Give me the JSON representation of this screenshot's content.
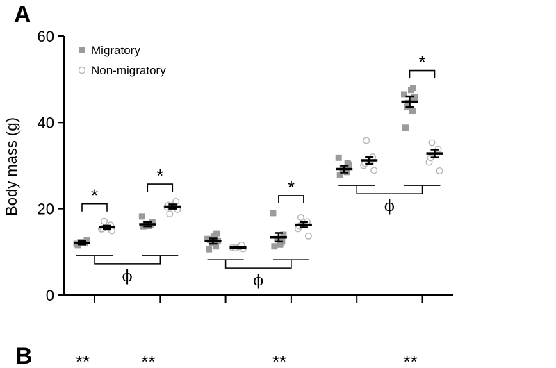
{
  "chart_data": {
    "type": "scatter",
    "panel_label": "A",
    "second_panel_label": "B",
    "ylabel": "Body mass (g)",
    "ylim": [
      0,
      60
    ],
    "yticks": [
      0,
      20,
      40,
      60
    ],
    "x_ticks_count": 6,
    "legend_placement": "top-left",
    "colors": {
      "migratory": "#9b9b9b",
      "non_migratory": "#b7b7b7",
      "mean": "#000000"
    },
    "series": [
      {
        "name": "Migratory",
        "marker": "filled-square"
      },
      {
        "name": "Non-migratory",
        "marker": "open-circle"
      }
    ],
    "groups": [
      {
        "tick": 1,
        "migratory": {
          "mean": 12.1,
          "sem": 0.4,
          "points": [
            11.6,
            12.0,
            12.3,
            12.7,
            11.9,
            12.2
          ]
        },
        "non_migratory": {
          "mean": 15.7,
          "sem": 0.4,
          "points": [
            14.9,
            15.3,
            15.8,
            16.2,
            17.1,
            15.5
          ]
        },
        "significance": "*"
      },
      {
        "tick": 2,
        "migratory": {
          "mean": 16.4,
          "sem": 0.5,
          "points": [
            15.9,
            16.2,
            16.5,
            16.8,
            18.2,
            16.0
          ]
        },
        "non_migratory": {
          "mean": 20.5,
          "sem": 0.5,
          "points": [
            19.8,
            20.4,
            21.0,
            21.7,
            18.8,
            20.8
          ]
        },
        "significance": "*"
      },
      {
        "tick": 3,
        "migratory": {
          "mean": 12.5,
          "sem": 0.6,
          "points": [
            10.6,
            11.3,
            12.0,
            12.5,
            13.0,
            13.6,
            14.3,
            12.8
          ]
        },
        "non_migratory": {
          "mean": 11.0,
          "sem": 0.2,
          "points": [
            10.7,
            11.0,
            11.2,
            11.6,
            10.9
          ]
        },
        "significance": ""
      },
      {
        "tick": 4,
        "migratory": {
          "mean": 13.4,
          "sem": 1.0,
          "points": [
            11.3,
            12.2,
            13.0,
            14.0,
            19.0,
            11.7,
            12.6
          ]
        },
        "non_migratory": {
          "mean": 16.3,
          "sem": 0.6,
          "points": [
            13.7,
            15.4,
            16.4,
            17.0,
            18.0,
            16.0
          ]
        },
        "significance": "*"
      },
      {
        "tick": 5,
        "migratory": {
          "mean": 29.2,
          "sem": 0.8,
          "points": [
            27.8,
            28.5,
            29.3,
            30.2,
            31.8,
            28.9,
            30.6
          ]
        },
        "non_migratory": {
          "mean": 31.2,
          "sem": 0.8,
          "points": [
            28.9,
            30.0,
            31.1,
            32.0,
            35.8,
            30.5
          ]
        },
        "significance": ""
      },
      {
        "tick": 6,
        "migratory": {
          "mean": 44.8,
          "sem": 1.2,
          "points": [
            38.8,
            42.7,
            44.5,
            45.8,
            46.5,
            47.5,
            48.0,
            43.6
          ]
        },
        "non_migratory": {
          "mean": 32.8,
          "sem": 0.9,
          "points": [
            28.8,
            30.8,
            32.5,
            33.8,
            35.3,
            31.8
          ]
        },
        "significance": "*"
      }
    ],
    "pair_brackets": [
      {
        "groups": [
          1,
          2
        ],
        "label": "ϕ"
      },
      {
        "groups": [
          3,
          4
        ],
        "label": "ϕ"
      },
      {
        "groups": [
          5,
          6
        ],
        "label": "ϕ"
      }
    ],
    "panel_b_markers": [
      {
        "tick": 1,
        "text": "**"
      },
      {
        "tick": 2,
        "text": "**"
      },
      {
        "tick": 4,
        "text": "**"
      },
      {
        "tick": 6,
        "text": "**"
      }
    ]
  }
}
